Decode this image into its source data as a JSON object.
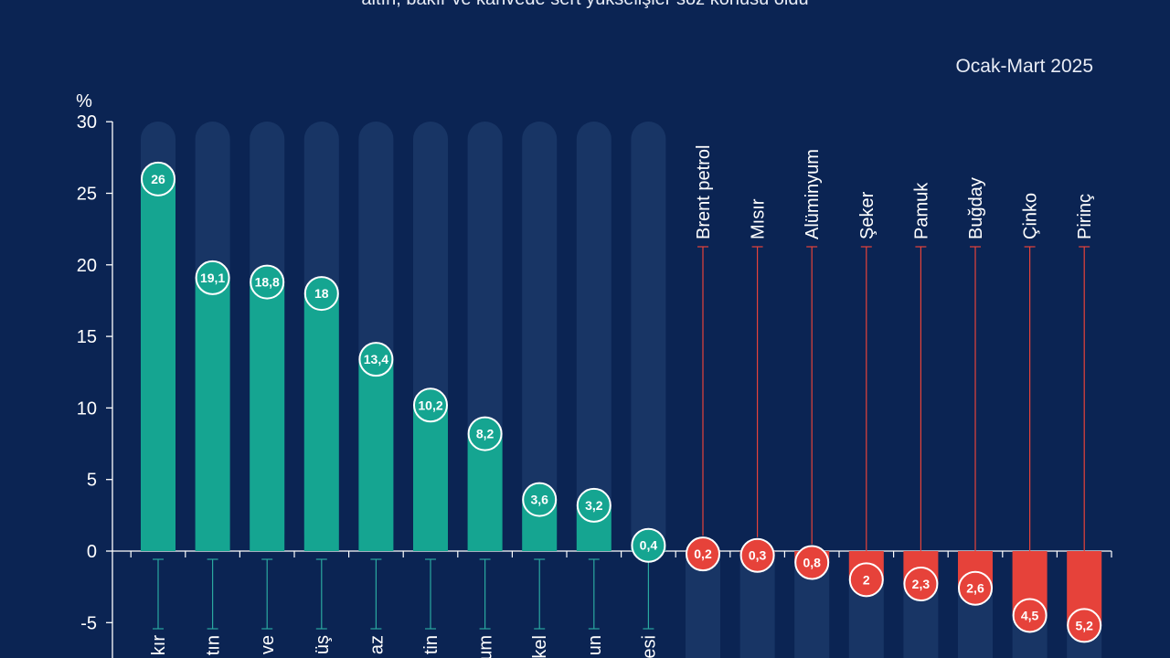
{
  "header": {
    "subtitle_fragment": "altın, bakır ve kahvede sert yükselişler söz konusu oldu",
    "period": "Ocak-Mart 2025"
  },
  "colors": {
    "background": "#0b2453",
    "positive": "#15a591",
    "negative": "#e6423a",
    "track": "#1b3868"
  },
  "chart_data": {
    "type": "bar",
    "ylabel": "%",
    "ylim": [
      -5,
      30
    ],
    "yticks": [
      30,
      25,
      20,
      15,
      10,
      5,
      0,
      -5
    ],
    "yticklabels": [
      "30",
      "25",
      "20",
      "15",
      "10",
      "5",
      "0",
      "-5"
    ],
    "categories": [
      "kır",
      "tın",
      "ve",
      "üş",
      "az",
      "tin",
      "um",
      "kel",
      "un",
      "esi",
      "Brent petrol",
      "Mısır",
      "Alüminyum",
      "Şeker",
      "Pamuk",
      "Buğday",
      "Çinko",
      "Pirinç"
    ],
    "values": [
      26,
      19.1,
      18.8,
      18,
      13.4,
      10.2,
      8.2,
      3.6,
      3.2,
      0.4,
      -0.2,
      -0.3,
      -0.8,
      -2,
      -2.3,
      -2.6,
      -4.5,
      -5.2
    ],
    "data_labels": [
      "26",
      "19,1",
      "18,8",
      "18",
      "13,4",
      "10,2",
      "8,2",
      "3,6",
      "3,2",
      "0,4",
      "0,2",
      "0,3",
      "0,8",
      "2",
      "2,3",
      "2,6",
      "4,5",
      "5,2"
    ]
  }
}
